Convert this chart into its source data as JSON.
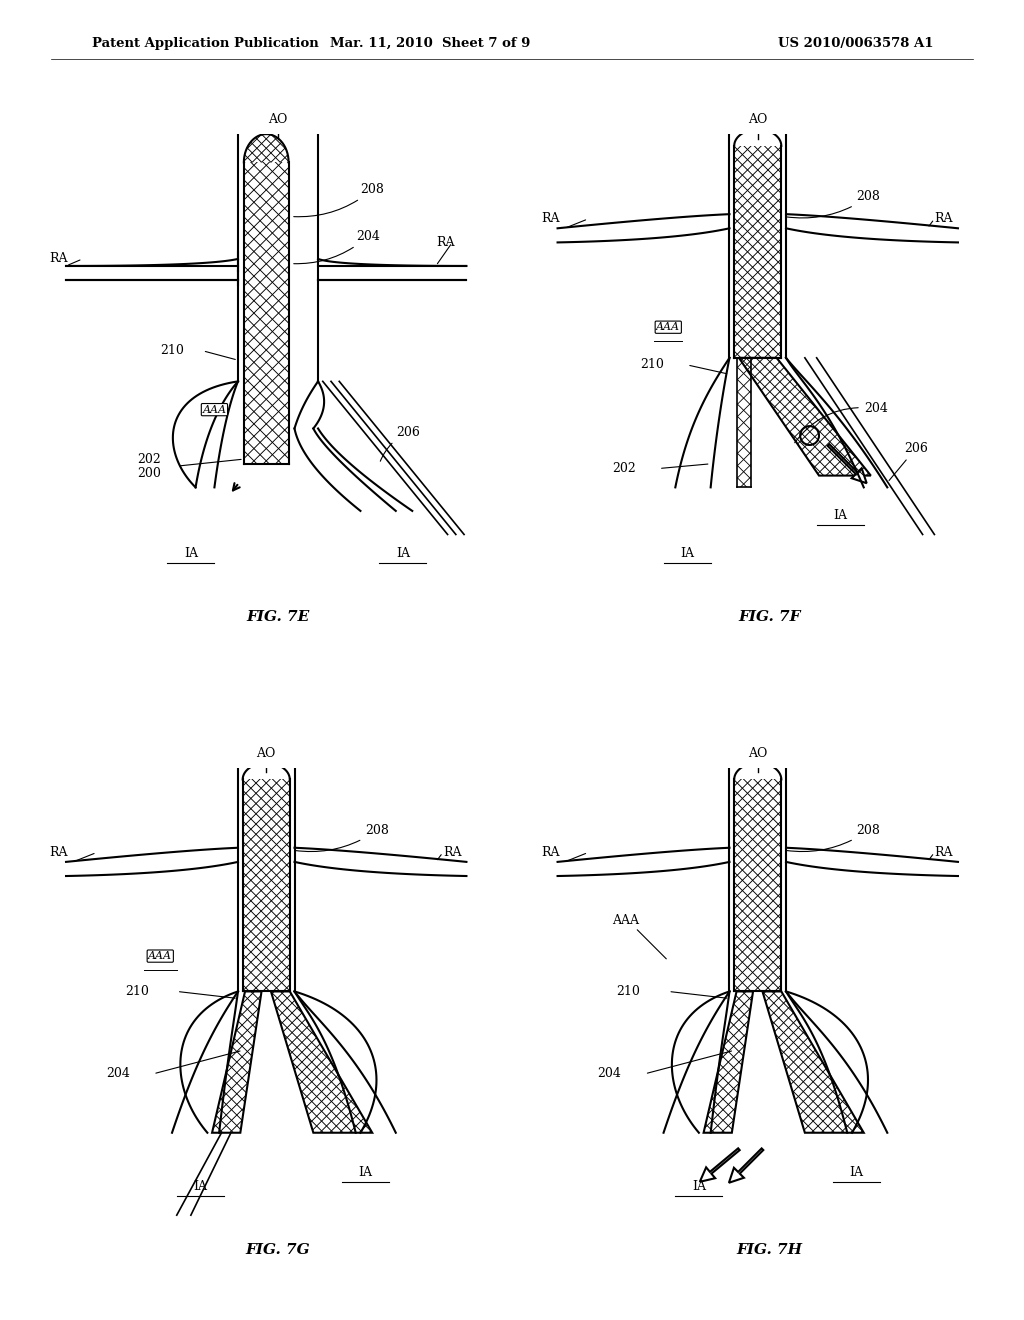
{
  "header_left": "Patent Application Publication",
  "header_mid": "Mar. 11, 2010  Sheet 7 of 9",
  "header_right": "US 2010/0063578 A1",
  "background_color": "#ffffff",
  "line_color": "#000000"
}
